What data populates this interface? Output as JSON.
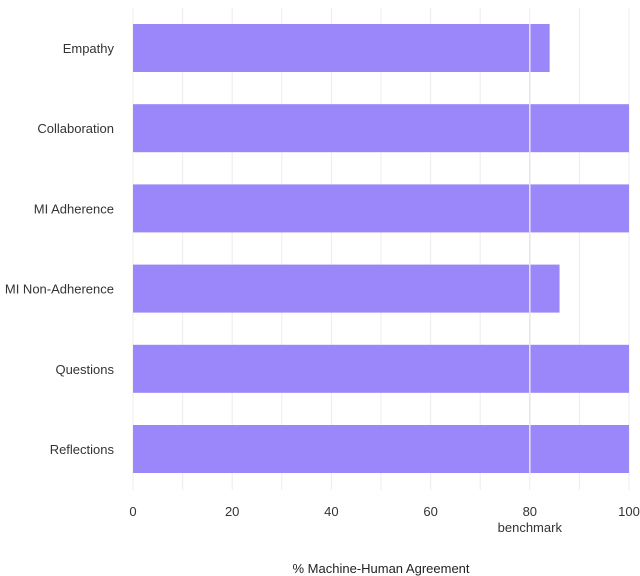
{
  "chart_data": {
    "type": "bar",
    "orientation": "horizontal",
    "categories": [
      "Empathy",
      "Collaboration",
      "MI Adherence",
      "MI Non-Adherence",
      "Questions",
      "Reflections"
    ],
    "values": [
      84,
      100,
      100,
      86,
      100,
      100
    ],
    "xlabel": "% Machine-Human Agreement",
    "ylabel": "",
    "xlim": [
      0,
      100
    ],
    "xticks": [
      0,
      20,
      40,
      60,
      80,
      100
    ],
    "benchmark": {
      "value": 80,
      "label": "benchmark"
    },
    "grid": true,
    "colors": {
      "bar": "#9b87fa",
      "benchmark_line": "#e6e6e6",
      "grid": "#ececec"
    }
  }
}
